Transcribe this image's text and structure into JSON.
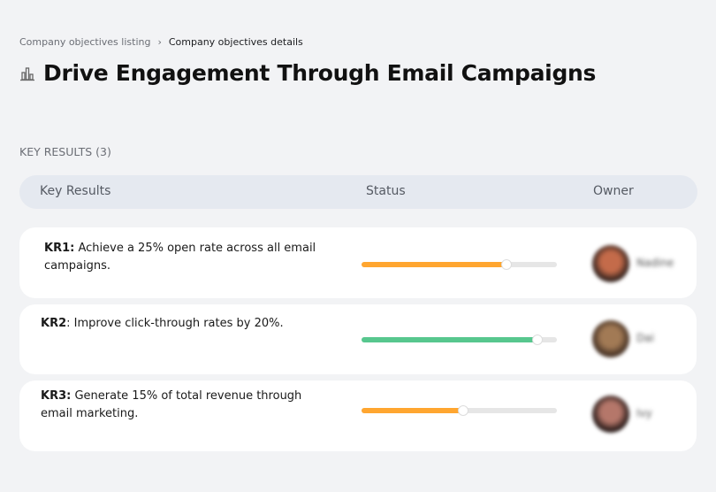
{
  "breadcrumb": {
    "parent": "Company objectives listing",
    "separator": "›",
    "current": "Company objectives details"
  },
  "page": {
    "title": "Drive Engagement Through Email Campaigns",
    "icon": "building-chart-icon"
  },
  "section_label": "KEY RESULTS (3)",
  "table": {
    "headers": [
      "Key Results",
      "Status",
      "Owner"
    ]
  },
  "key_results": [
    {
      "id": "KR1:",
      "text": " Achieve a 25% open rate across all email campaigns.",
      "progress": 74,
      "color": "#ffa630",
      "owner": "Nadine",
      "avatar_colors": [
        "#3a2620",
        "#c46b4a"
      ]
    },
    {
      "id": "KR2",
      "text": ": Improve click-through rates by 20%.",
      "progress": 90,
      "color": "#57c78e",
      "owner": "Dai",
      "avatar_colors": [
        "#4a3527",
        "#a27a55"
      ]
    },
    {
      "id": "KR3:",
      "text": " Generate 15% of total revenue through email marketing.",
      "progress": 52,
      "color": "#ffa630",
      "owner": "Ivy",
      "avatar_colors": [
        "#2d1e1c",
        "#b5776a"
      ]
    }
  ]
}
